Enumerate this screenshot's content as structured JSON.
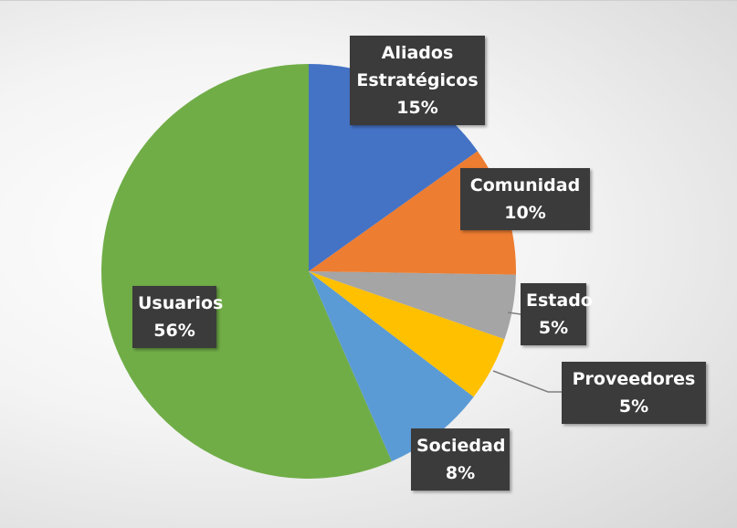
{
  "chart_data": {
    "type": "pie",
    "categories": [
      "Aliados Estratégicos",
      "Comunidad",
      "Estado",
      "Proveedores",
      "Sociedad",
      "Usuarios"
    ],
    "values": [
      15,
      10,
      5,
      5,
      8,
      56
    ],
    "value_labels": [
      "15%",
      "10%",
      "5%",
      "5%",
      "8%",
      "56%"
    ],
    "colors": [
      "#4472c4",
      "#ed7d31",
      "#a5a5a5",
      "#ffc000",
      "#5b9bd5",
      "#70ad47"
    ]
  }
}
